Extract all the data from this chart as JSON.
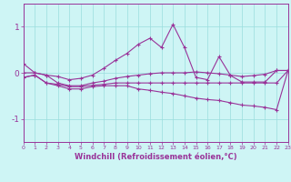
{
  "x": [
    0,
    1,
    2,
    3,
    4,
    5,
    6,
    7,
    8,
    9,
    10,
    11,
    12,
    13,
    14,
    15,
    16,
    17,
    18,
    19,
    20,
    21,
    22,
    23
  ],
  "line1": [
    0.2,
    0.0,
    -0.05,
    -0.08,
    -0.15,
    -0.12,
    -0.05,
    0.1,
    0.27,
    0.42,
    0.62,
    0.75,
    0.55,
    1.05,
    0.55,
    -0.1,
    -0.15,
    0.35,
    -0.06,
    -0.2,
    -0.2,
    -0.2,
    0.05,
    0.05
  ],
  "line2": [
    -0.1,
    -0.05,
    -0.22,
    -0.25,
    -0.3,
    -0.3,
    -0.27,
    -0.25,
    -0.22,
    -0.22,
    -0.22,
    -0.22,
    -0.22,
    -0.22,
    -0.22,
    -0.22,
    -0.22,
    -0.22,
    -0.22,
    -0.22,
    -0.22,
    -0.22,
    -0.22,
    0.05
  ],
  "line3": [
    -0.1,
    -0.05,
    -0.22,
    -0.28,
    -0.35,
    -0.35,
    -0.3,
    -0.28,
    -0.28,
    -0.28,
    -0.35,
    -0.38,
    -0.42,
    -0.45,
    -0.5,
    -0.55,
    -0.58,
    -0.6,
    -0.65,
    -0.7,
    -0.72,
    -0.75,
    -0.8,
    0.05
  ],
  "line4": [
    0.0,
    0.0,
    -0.05,
    -0.22,
    -0.28,
    -0.28,
    -0.22,
    -0.18,
    -0.12,
    -0.08,
    -0.05,
    -0.02,
    0.0,
    0.0,
    0.0,
    0.02,
    0.0,
    -0.02,
    -0.05,
    -0.08,
    -0.06,
    -0.03,
    0.05,
    0.05
  ],
  "background_color": "#cef5f5",
  "grid_color": "#99dddd",
  "line_color": "#993399",
  "ylim": [
    -1.5,
    1.5
  ],
  "xlim": [
    0,
    23
  ],
  "xlabel": "Windchill (Refroidissement éolien,°C)",
  "yticks": [
    -1,
    0,
    1
  ],
  "xticks": [
    0,
    1,
    2,
    3,
    4,
    5,
    6,
    7,
    8,
    9,
    10,
    11,
    12,
    13,
    14,
    15,
    16,
    17,
    18,
    19,
    20,
    21,
    22,
    23
  ]
}
